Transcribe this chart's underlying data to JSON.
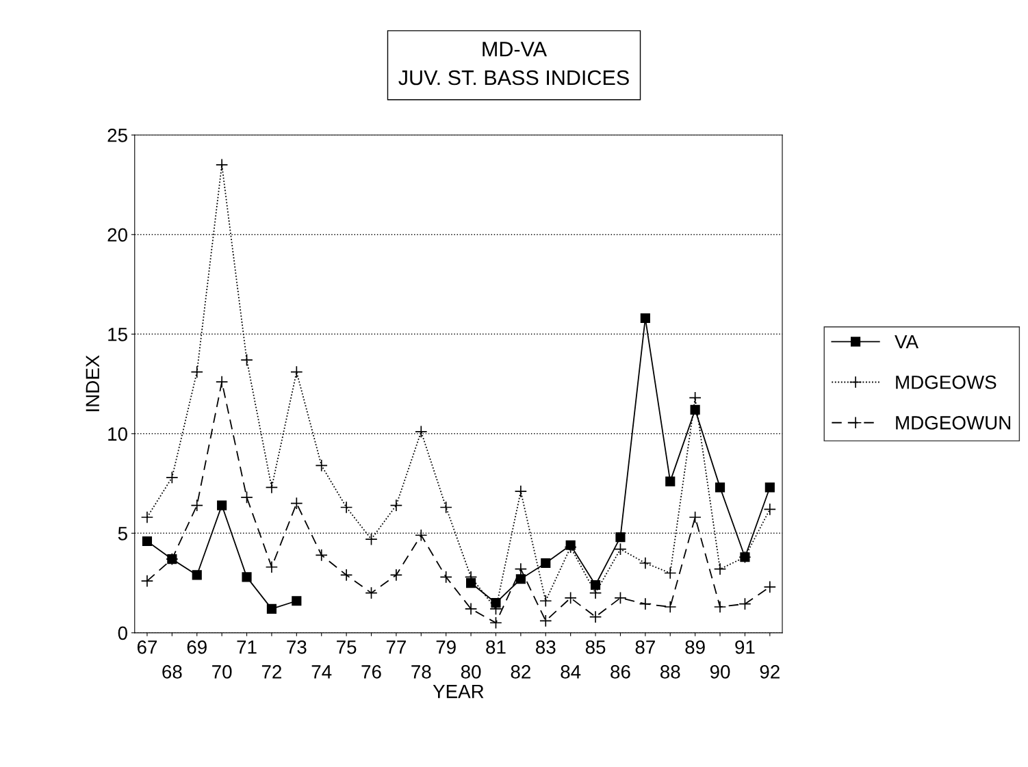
{
  "chart_data": {
    "type": "line",
    "title": "MD-VA\nJUV. ST. BASS INDICES",
    "xlabel": "YEAR",
    "ylabel": "INDEX",
    "categories": [
      "67",
      "68",
      "69",
      "70",
      "71",
      "72",
      "73",
      "74",
      "75",
      "76",
      "77",
      "78",
      "79",
      "80",
      "81",
      "82",
      "83",
      "84",
      "85",
      "86",
      "87",
      "88",
      "89",
      "90",
      "91",
      "92"
    ],
    "series": [
      {
        "name": "VA",
        "color": "#000000",
        "marker": "square",
        "line_style": "solid",
        "values": [
          4.6,
          3.7,
          2.9,
          6.4,
          2.8,
          1.2,
          1.6,
          null,
          null,
          null,
          null,
          null,
          null,
          2.5,
          1.5,
          2.7,
          3.5,
          4.4,
          2.4,
          4.8,
          15.8,
          7.6,
          11.2,
          7.3,
          3.8,
          7.3
        ]
      },
      {
        "name": "MDGEOWS",
        "color": "#000000",
        "marker": "cross",
        "line_style": "dotted",
        "values": [
          5.8,
          7.8,
          13.1,
          23.5,
          13.7,
          7.3,
          13.1,
          8.4,
          6.3,
          4.7,
          6.4,
          10.1,
          6.3,
          2.8,
          1.2,
          7.1,
          1.6,
          4.3,
          2.0,
          4.2,
          3.5,
          3.0,
          11.8,
          3.2,
          3.8,
          6.2
        ]
      },
      {
        "name": "MDGEOWUN",
        "color": "#000000",
        "marker": "cross",
        "line_style": "dashed",
        "values": [
          2.6,
          3.7,
          6.4,
          12.6,
          6.8,
          3.3,
          6.5,
          3.9,
          2.9,
          2.0,
          2.9,
          4.9,
          2.8,
          1.2,
          0.5,
          3.2,
          0.6,
          1.75,
          0.8,
          1.75,
          1.45,
          1.3,
          5.8,
          1.3,
          1.45,
          2.3
        ]
      }
    ],
    "ylim": [
      0,
      25
    ],
    "yticks": [
      0,
      5,
      10,
      15,
      20,
      25
    ],
    "grid": "y",
    "legend": "right"
  }
}
